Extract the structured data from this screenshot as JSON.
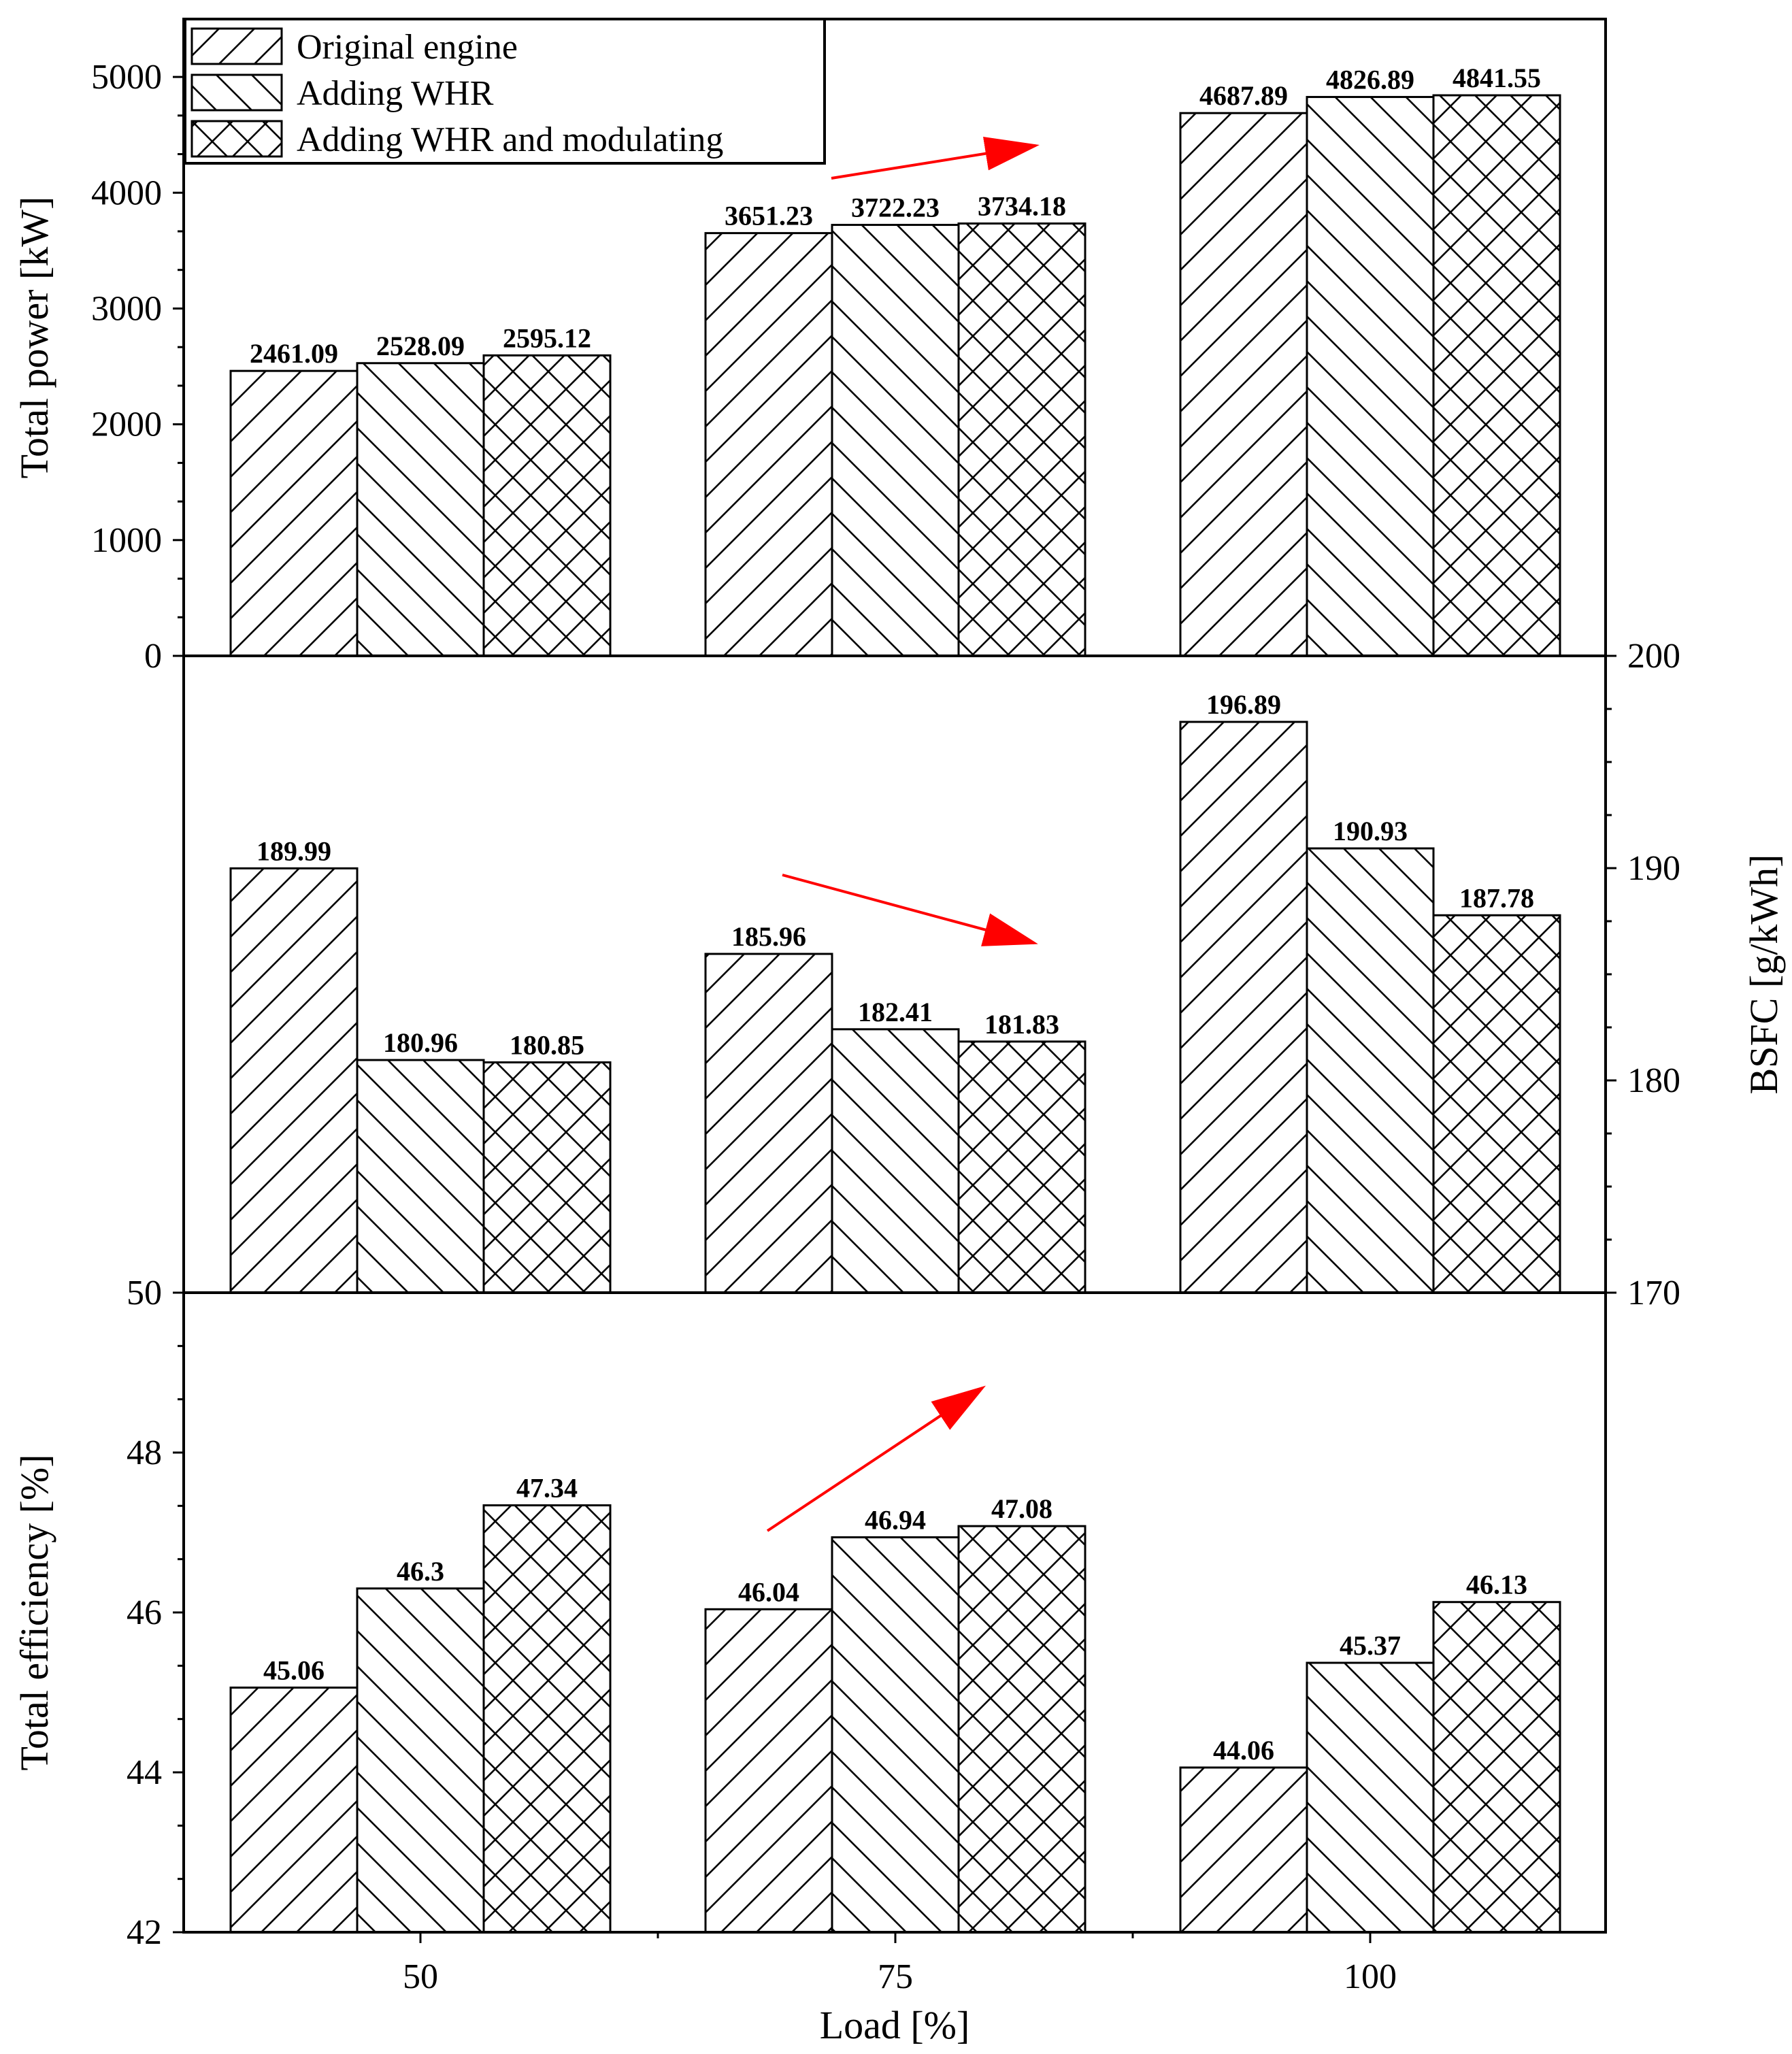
{
  "chart_data": [
    {
      "type": "bar",
      "panel": "top",
      "ylabel": "Total power [kW]",
      "ylabel_side": "left",
      "ylim": [
        0,
        5500
      ],
      "yticks": [
        0,
        1000,
        2000,
        3000,
        4000,
        5000
      ],
      "ytick_labels": [
        "0",
        "1000",
        "2000",
        "3000",
        "4000",
        "5000"
      ],
      "categories": [
        "50",
        "75",
        "100"
      ],
      "series": [
        {
          "name": "Original engine",
          "values": [
            2461.09,
            3651.23,
            4687.89
          ],
          "labels": [
            "2461.09",
            "3651.23",
            "4687.89"
          ],
          "pattern": "forward"
        },
        {
          "name": "Adding WHR",
          "values": [
            2528.09,
            3722.23,
            4826.89
          ],
          "labels": [
            "2528.09",
            "3722.23",
            "4826.89"
          ],
          "pattern": "backward"
        },
        {
          "name": "Adding WHR and modulating",
          "values": [
            2595.12,
            3734.18,
            4841.55
          ],
          "labels": [
            "2595.12",
            "3734.18",
            "4841.55"
          ],
          "pattern": "cross"
        }
      ],
      "trend_arrow": "up",
      "legend": "top-left"
    },
    {
      "type": "bar",
      "panel": "middle",
      "ylabel": "BSFC [g/kWh]",
      "ylabel_side": "right",
      "ylim": [
        170,
        200
      ],
      "yticks": [
        170,
        180,
        190,
        200
      ],
      "ytick_labels": [
        "170",
        "180",
        "190",
        "200"
      ],
      "categories": [
        "50",
        "75",
        "100"
      ],
      "series": [
        {
          "name": "Original engine",
          "values": [
            189.99,
            185.96,
            196.89
          ],
          "labels": [
            "189.99",
            "185.96",
            "196.89"
          ],
          "pattern": "forward"
        },
        {
          "name": "Adding WHR",
          "values": [
            180.96,
            182.41,
            190.93
          ],
          "labels": [
            "180.96",
            "182.41",
            "190.93"
          ],
          "pattern": "backward"
        },
        {
          "name": "Adding WHR and modulating",
          "values": [
            180.85,
            181.83,
            187.78
          ],
          "labels": [
            "180.85",
            "181.83",
            "187.78"
          ],
          "pattern": "cross"
        }
      ],
      "trend_arrow": "down"
    },
    {
      "type": "bar",
      "panel": "bottom",
      "ylabel": "Total efficiency [%]",
      "ylabel_side": "left",
      "xlabel": "Load [%]",
      "ylim": [
        42,
        50
      ],
      "yticks": [
        42,
        44,
        46,
        48,
        50
      ],
      "ytick_labels": [
        "42",
        "44",
        "46",
        "48",
        "50"
      ],
      "categories": [
        "50",
        "75",
        "100"
      ],
      "series": [
        {
          "name": "Original engine",
          "values": [
            45.06,
            46.04,
            44.06
          ],
          "labels": [
            "45.06",
            "46.04",
            "44.06"
          ],
          "pattern": "forward"
        },
        {
          "name": "Adding WHR",
          "values": [
            46.3,
            46.94,
            45.37
          ],
          "labels": [
            "46.3",
            "46.94",
            "45.37"
          ],
          "pattern": "backward"
        },
        {
          "name": "Adding WHR and modulating",
          "values": [
            47.34,
            47.08,
            46.13
          ],
          "labels": [
            "47.34",
            "47.08",
            "46.13"
          ],
          "pattern": "cross"
        }
      ],
      "trend_arrow": "up"
    }
  ],
  "legend": {
    "entries": [
      "Original engine",
      "Adding WHR",
      "Adding WHR and modulating"
    ]
  },
  "colors": {
    "bar_fill": "#ffffff",
    "stroke": "#000000",
    "arrow": "#ff0000"
  }
}
